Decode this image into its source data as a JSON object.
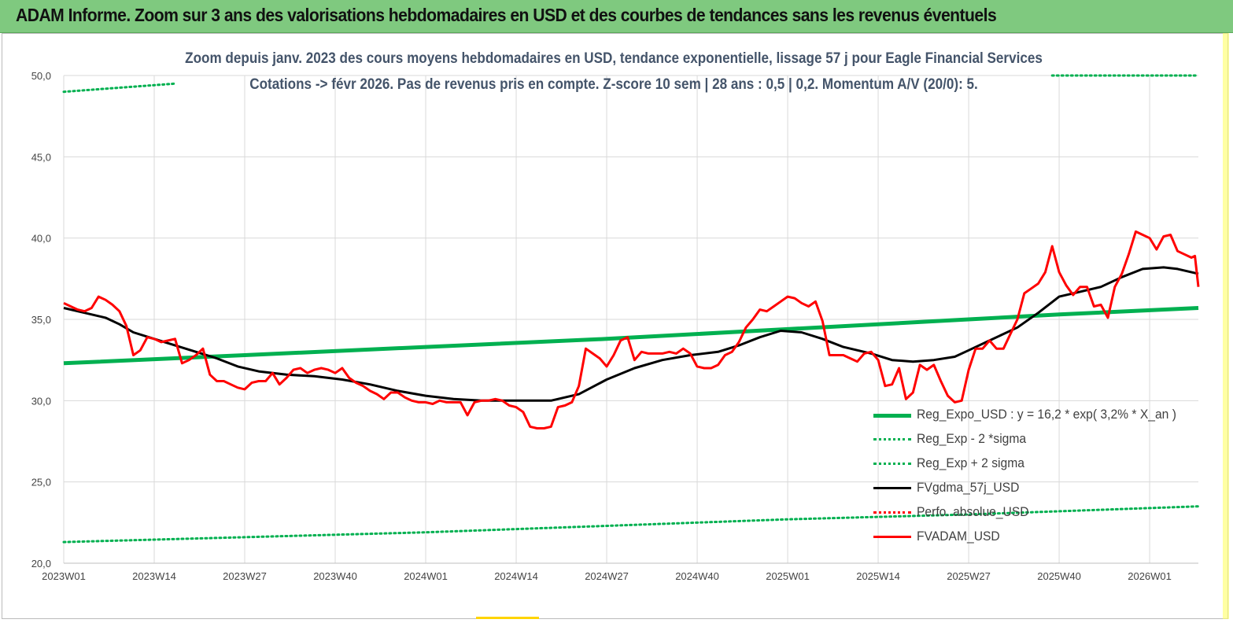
{
  "header": {
    "title": "ADAM Informe. Zoom sur 3 ans des valorisations hebdomadaires en USD et des courbes de tendances sans les revenus éventuels"
  },
  "subtitle": {
    "line1": "Zoom depuis janv. 2023 des cours moyens hebdomadaires en USD, tendance exponentielle, lissage 57 j pour Eagle Financial Services",
    "line2": "Cotations -> févr 2026. Pas de revenus pris en compte. Z-score 10 sem | 28 ans : 0,5 | 0,2. Momentum A/V (20/0): 5."
  },
  "colors": {
    "reg": "#00b050",
    "fv": "#000000",
    "price": "#ff0000",
    "perfo": "#ff0000",
    "grid": "#d9d9d9",
    "header": "#7fc97f"
  },
  "chart_data": {
    "type": "line",
    "ylim": [
      20,
      50
    ],
    "yticks": [
      "20,0",
      "25,0",
      "30,0",
      "35,0",
      "40,0",
      "45,0",
      "50,0"
    ],
    "xlim": [
      0,
      163
    ],
    "xticks": [
      {
        "label": "2023W01",
        "x": 0
      },
      {
        "label": "2023W14",
        "x": 13
      },
      {
        "label": "2023W27",
        "x": 26
      },
      {
        "label": "2023W40",
        "x": 39
      },
      {
        "label": "2024W01",
        "x": 52
      },
      {
        "label": "2024W14",
        "x": 65
      },
      {
        "label": "2024W27",
        "x": 78
      },
      {
        "label": "2024W40",
        "x": 91
      },
      {
        "label": "2025W01",
        "x": 104
      },
      {
        "label": "2025W14",
        "x": 117
      },
      {
        "label": "2025W27",
        "x": 130
      },
      {
        "label": "2025W40",
        "x": 143
      },
      {
        "label": "2026W01",
        "x": 156
      }
    ],
    "series": [
      {
        "name": "Reg_Expo_USD : y = 16,2 * exp( 3,2% *  X_an )",
        "style": "solid-thick",
        "color": "#00b050",
        "points": [
          [
            0,
            32.3
          ],
          [
            26,
            32.8
          ],
          [
            52,
            33.3
          ],
          [
            78,
            33.8
          ],
          [
            104,
            34.4
          ],
          [
            130,
            35.0
          ],
          [
            143,
            35.3
          ],
          [
            163,
            35.7
          ]
        ]
      },
      {
        "name": "Reg_Exp - 2 *sigma",
        "style": "dotted",
        "color": "#00b050",
        "points": [
          [
            0,
            21.3
          ],
          [
            26,
            21.6
          ],
          [
            52,
            21.9
          ],
          [
            78,
            22.3
          ],
          [
            104,
            22.7
          ],
          [
            130,
            23.0
          ],
          [
            163,
            23.5
          ]
        ]
      },
      {
        "name": "Reg_Exp + 2 sigma",
        "style": "dotted",
        "color": "#00b050",
        "segments": [
          [
            [
              0,
              49.0
            ],
            [
              16,
              49.5
            ]
          ],
          [
            [
              142,
              50.0
            ],
            [
              163,
              50.0
            ]
          ]
        ]
      },
      {
        "name": "FVgdma_57j_USD",
        "style": "solid",
        "color": "#000000",
        "points": [
          [
            0,
            35.7
          ],
          [
            3,
            35.4
          ],
          [
            6,
            35.1
          ],
          [
            8,
            34.7
          ],
          [
            10,
            34.2
          ],
          [
            13,
            33.8
          ],
          [
            16,
            33.4
          ],
          [
            19,
            33.0
          ],
          [
            22,
            32.6
          ],
          [
            25,
            32.1
          ],
          [
            28,
            31.8
          ],
          [
            32,
            31.6
          ],
          [
            36,
            31.5
          ],
          [
            40,
            31.3
          ],
          [
            44,
            31.0
          ],
          [
            48,
            30.6
          ],
          [
            52,
            30.3
          ],
          [
            56,
            30.1
          ],
          [
            60,
            30.0
          ],
          [
            64,
            30.0
          ],
          [
            70,
            30.0
          ],
          [
            74,
            30.4
          ],
          [
            78,
            31.3
          ],
          [
            82,
            32.0
          ],
          [
            86,
            32.5
          ],
          [
            90,
            32.8
          ],
          [
            94,
            33.0
          ],
          [
            97,
            33.4
          ],
          [
            100,
            33.9
          ],
          [
            103,
            34.3
          ],
          [
            106,
            34.2
          ],
          [
            109,
            33.8
          ],
          [
            112,
            33.3
          ],
          [
            116,
            32.9
          ],
          [
            119,
            32.5
          ],
          [
            122,
            32.4
          ],
          [
            125,
            32.5
          ],
          [
            128,
            32.7
          ],
          [
            130,
            33.1
          ],
          [
            133,
            33.7
          ],
          [
            137,
            34.5
          ],
          [
            140,
            35.4
          ],
          [
            143,
            36.4
          ],
          [
            146,
            36.7
          ],
          [
            149,
            37.0
          ],
          [
            152,
            37.6
          ],
          [
            155,
            38.1
          ],
          [
            158,
            38.2
          ],
          [
            160,
            38.1
          ],
          [
            163,
            37.8
          ]
        ]
      },
      {
        "name": "Perfo. absolue_USD",
        "style": "dotted",
        "color": "#ff0000",
        "points": []
      },
      {
        "name": "FVADAM_USD",
        "style": "solid",
        "color": "#ff0000",
        "points": [
          [
            0,
            36.0
          ],
          [
            1,
            35.8
          ],
          [
            2,
            35.6
          ],
          [
            3,
            35.5
          ],
          [
            4,
            35.7
          ],
          [
            5,
            36.4
          ],
          [
            6,
            36.2
          ],
          [
            7,
            35.9
          ],
          [
            8,
            35.5
          ],
          [
            9,
            34.6
          ],
          [
            10,
            32.8
          ],
          [
            11,
            33.1
          ],
          [
            12,
            33.9
          ],
          [
            13,
            33.8
          ],
          [
            14,
            33.6
          ],
          [
            15,
            33.7
          ],
          [
            16,
            33.8
          ],
          [
            17,
            32.3
          ],
          [
            18,
            32.5
          ],
          [
            19,
            32.8
          ],
          [
            20,
            33.2
          ],
          [
            21,
            31.6
          ],
          [
            22,
            31.2
          ],
          [
            23,
            31.2
          ],
          [
            24,
            31.0
          ],
          [
            25,
            30.8
          ],
          [
            26,
            30.7
          ],
          [
            27,
            31.1
          ],
          [
            28,
            31.2
          ],
          [
            29,
            31.2
          ],
          [
            30,
            31.7
          ],
          [
            31,
            31.0
          ],
          [
            32,
            31.4
          ],
          [
            33,
            31.9
          ],
          [
            34,
            32.0
          ],
          [
            35,
            31.7
          ],
          [
            36,
            31.9
          ],
          [
            37,
            32.0
          ],
          [
            38,
            31.9
          ],
          [
            39,
            31.7
          ],
          [
            40,
            32.0
          ],
          [
            41,
            31.4
          ],
          [
            42,
            31.1
          ],
          [
            43,
            30.9
          ],
          [
            44,
            30.6
          ],
          [
            45,
            30.4
          ],
          [
            46,
            30.1
          ],
          [
            47,
            30.5
          ],
          [
            48,
            30.5
          ],
          [
            49,
            30.2
          ],
          [
            50,
            30.0
          ],
          [
            51,
            29.9
          ],
          [
            52,
            29.9
          ],
          [
            53,
            29.8
          ],
          [
            54,
            30.0
          ],
          [
            55,
            29.9
          ],
          [
            56,
            29.9
          ],
          [
            57,
            29.9
          ],
          [
            58,
            29.1
          ],
          [
            59,
            29.9
          ],
          [
            60,
            30.0
          ],
          [
            61,
            30.0
          ],
          [
            62,
            30.1
          ],
          [
            63,
            30.0
          ],
          [
            64,
            29.7
          ],
          [
            65,
            29.6
          ],
          [
            66,
            29.3
          ],
          [
            67,
            28.4
          ],
          [
            68,
            28.3
          ],
          [
            69,
            28.3
          ],
          [
            70,
            28.4
          ],
          [
            71,
            29.6
          ],
          [
            72,
            29.7
          ],
          [
            73,
            29.9
          ],
          [
            74,
            30.9
          ],
          [
            75,
            33.2
          ],
          [
            76,
            32.9
          ],
          [
            77,
            32.6
          ],
          [
            78,
            32.1
          ],
          [
            79,
            32.8
          ],
          [
            80,
            33.7
          ],
          [
            81,
            33.9
          ],
          [
            82,
            32.5
          ],
          [
            83,
            33.0
          ],
          [
            84,
            32.9
          ],
          [
            85,
            32.9
          ],
          [
            86,
            32.9
          ],
          [
            87,
            33.0
          ],
          [
            88,
            32.9
          ],
          [
            89,
            33.2
          ],
          [
            90,
            32.9
          ],
          [
            91,
            32.1
          ],
          [
            92,
            32.0
          ],
          [
            93,
            32.0
          ],
          [
            94,
            32.2
          ],
          [
            95,
            32.8
          ],
          [
            96,
            33.0
          ],
          [
            97,
            33.6
          ],
          [
            98,
            34.5
          ],
          [
            99,
            35.0
          ],
          [
            100,
            35.6
          ],
          [
            101,
            35.5
          ],
          [
            102,
            35.8
          ],
          [
            103,
            36.1
          ],
          [
            104,
            36.4
          ],
          [
            105,
            36.3
          ],
          [
            106,
            36.0
          ],
          [
            107,
            35.8
          ],
          [
            108,
            36.1
          ],
          [
            109,
            34.9
          ],
          [
            110,
            32.8
          ],
          [
            111,
            32.8
          ],
          [
            112,
            32.8
          ],
          [
            113,
            32.6
          ],
          [
            114,
            32.4
          ],
          [
            115,
            32.9
          ],
          [
            116,
            33.0
          ],
          [
            117,
            32.5
          ],
          [
            118,
            30.9
          ],
          [
            119,
            31.0
          ],
          [
            120,
            32.0
          ],
          [
            121,
            30.1
          ],
          [
            122,
            30.5
          ],
          [
            123,
            32.2
          ],
          [
            124,
            31.9
          ],
          [
            125,
            32.2
          ],
          [
            126,
            31.2
          ],
          [
            127,
            30.3
          ],
          [
            128,
            29.9
          ],
          [
            129,
            30.0
          ],
          [
            130,
            31.9
          ],
          [
            131,
            33.2
          ],
          [
            132,
            33.2
          ],
          [
            133,
            33.7
          ],
          [
            134,
            33.2
          ],
          [
            135,
            33.2
          ],
          [
            136,
            34.1
          ],
          [
            137,
            35.0
          ],
          [
            138,
            36.6
          ],
          [
            139,
            36.9
          ],
          [
            140,
            37.2
          ],
          [
            141,
            37.9
          ],
          [
            142,
            39.5
          ],
          [
            143,
            37.9
          ],
          [
            144,
            37.1
          ],
          [
            145,
            36.5
          ],
          [
            146,
            37.0
          ],
          [
            147,
            37.0
          ],
          [
            148,
            35.8
          ],
          [
            149,
            35.9
          ],
          [
            150,
            35.1
          ],
          [
            151,
            37.0
          ],
          [
            152,
            37.8
          ],
          [
            153,
            39.0
          ],
          [
            154,
            40.4
          ],
          [
            155,
            40.2
          ],
          [
            156,
            40.0
          ],
          [
            157,
            39.3
          ],
          [
            158,
            40.1
          ],
          [
            159,
            40.2
          ],
          [
            160,
            39.2
          ],
          [
            161,
            39.0
          ],
          [
            162,
            38.8
          ],
          [
            162.5,
            38.9
          ],
          [
            163,
            37.0
          ]
        ]
      }
    ],
    "legend_position": "bottom-right",
    "grid": true
  }
}
